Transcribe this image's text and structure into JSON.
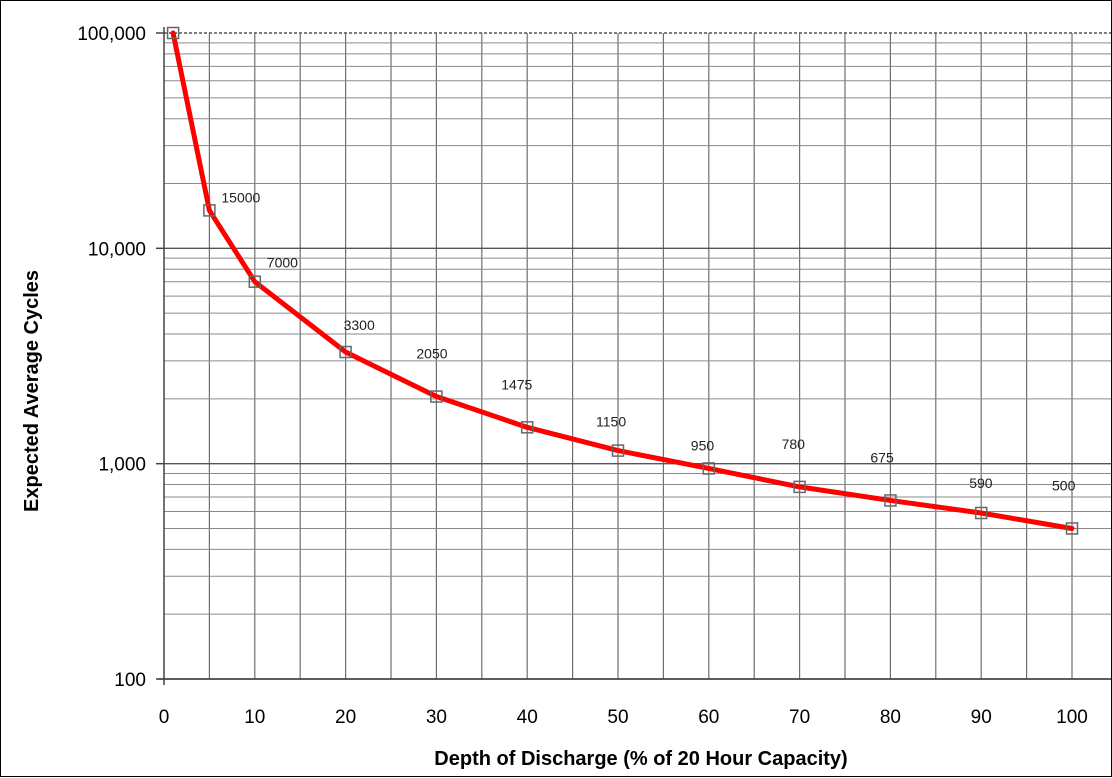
{
  "chart_data": {
    "type": "line",
    "title": "",
    "xlabel": "Depth of Discharge (% of 20 Hour Capacity)",
    "ylabel": "Expected Average Cycles",
    "x_scale": "linear",
    "y_scale": "log",
    "xlim": [
      0,
      100
    ],
    "ylim": [
      100,
      100000
    ],
    "x_ticks": [
      "0",
      "10",
      "20",
      "30",
      "40",
      "50",
      "60",
      "70",
      "80",
      "90",
      "100"
    ],
    "y_ticks": [
      "100",
      "1,000",
      "10,000",
      "100,000"
    ],
    "grid": true,
    "legend": "none",
    "series": [
      {
        "color": "#ff0000",
        "marker_color": "#666666",
        "points": [
          {
            "x": 1,
            "y": 100000,
            "label": ""
          },
          {
            "x": 5,
            "y": 15000,
            "label": "15000"
          },
          {
            "x": 10,
            "y": 7000,
            "label": "7000"
          },
          {
            "x": 20,
            "y": 3300,
            "label": "3300"
          },
          {
            "x": 30,
            "y": 2050,
            "label": "2050"
          },
          {
            "x": 40,
            "y": 1475,
            "label": "1475"
          },
          {
            "x": 50,
            "y": 1150,
            "label": "1150"
          },
          {
            "x": 60,
            "y": 950,
            "label": "950"
          },
          {
            "x": 70,
            "y": 780,
            "label": "780"
          },
          {
            "x": 80,
            "y": 675,
            "label": "675"
          },
          {
            "x": 90,
            "y": 590,
            "label": "590"
          },
          {
            "x": 100,
            "y": 500,
            "label": "500"
          }
        ]
      }
    ]
  }
}
